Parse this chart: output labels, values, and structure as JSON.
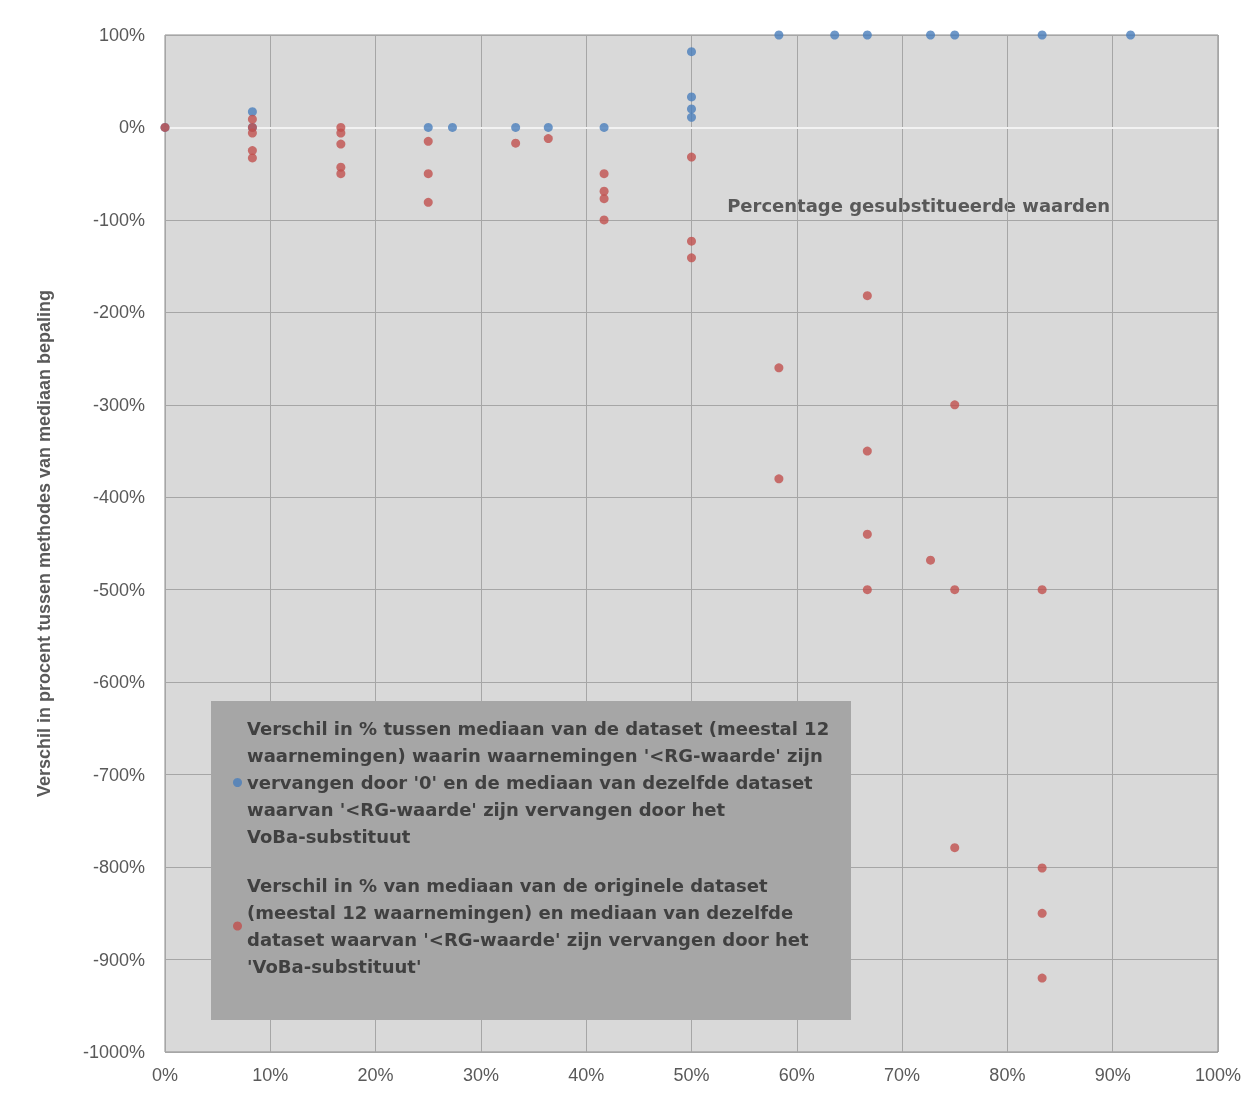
{
  "chart_data": {
    "type": "scatter",
    "xlabel": "Percentage gesubstitueerde waarden",
    "ylabel": "Verschil in procent tussen methodes van mediaan bepaling",
    "xlim": [
      0,
      100
    ],
    "xticks": [
      {
        "value": 0,
        "label": "0%"
      },
      {
        "value": 10,
        "label": "10%"
      },
      {
        "value": 20,
        "label": "20%"
      },
      {
        "value": 30,
        "label": "30%"
      },
      {
        "value": 40,
        "label": "40%"
      },
      {
        "value": 50,
        "label": "50%"
      },
      {
        "value": 60,
        "label": "60%"
      },
      {
        "value": 70,
        "label": "70%"
      },
      {
        "value": 80,
        "label": "80%"
      },
      {
        "value": 90,
        "label": "90%"
      },
      {
        "value": 100,
        "label": "100%"
      }
    ],
    "ylim": [
      -1000,
      100
    ],
    "yticks": [
      {
        "value": 100,
        "label": "100%"
      },
      {
        "value": 0,
        "label": "0%"
      },
      {
        "value": -100,
        "label": "-100%"
      },
      {
        "value": -200,
        "label": "-200%"
      },
      {
        "value": -300,
        "label": "-300%"
      },
      {
        "value": -400,
        "label": "-400%"
      },
      {
        "value": -500,
        "label": "-500%"
      },
      {
        "value": -600,
        "label": "-600%"
      },
      {
        "value": -700,
        "label": "-700%"
      },
      {
        "value": -800,
        "label": "-800%"
      },
      {
        "value": -900,
        "label": "-900%"
      },
      {
        "value": -1000,
        "label": "-1000%"
      }
    ],
    "grid": true,
    "legend": "bottom left",
    "marker": "circle",
    "series": [
      {
        "name": "Verschil in % tussen mediaan van de dataset (meestal 12 waarnemingen) waarin waarnemingen '<RG-waarde' zijn vervangen door '0' en de mediaan van dezelfde dataset waarvan '<RG-waarde' zijn vervangen door het VoBa-substituut",
        "color": "#4a7ebb",
        "x": [
          0,
          8.3,
          8.3,
          25,
          27.3,
          33.3,
          36.4,
          41.7,
          50,
          50,
          50,
          50,
          58.3,
          63.6,
          66.7,
          72.7,
          75,
          83.3,
          91.7
        ],
        "values": [
          0,
          17,
          0,
          0,
          0,
          0,
          0,
          0,
          82,
          33,
          20,
          11,
          100,
          100,
          100,
          100,
          100,
          100,
          100
        ]
      },
      {
        "name": "Verschil in % van mediaan van de originele dataset (meestal 12 waarnemingen) en mediaan van dezelfde dataset waarvan '<RG-waarde' zijn vervangen door het 'VoBa-substituut'",
        "color": "#c0504d",
        "x": [
          0,
          8.3,
          8.3,
          8.3,
          8.3,
          8.3,
          16.7,
          16.7,
          16.7,
          16.7,
          16.7,
          25,
          25,
          25,
          33.3,
          36.4,
          41.7,
          41.7,
          41.7,
          41.7,
          50,
          50,
          50,
          58.3,
          58.3,
          66.7,
          66.7,
          66.7,
          66.7,
          72.7,
          75,
          75,
          75,
          83.3,
          83.3,
          83.3,
          83.3
        ],
        "values": [
          0,
          9,
          0,
          -6,
          -25,
          -33,
          0,
          -6,
          -18,
          -43,
          -50,
          -15,
          -50,
          -81,
          -17,
          -12,
          -50,
          -69,
          -77,
          -100,
          -32,
          -123,
          -141,
          -260,
          -380,
          -182,
          -350,
          -440,
          -500,
          -468,
          -300,
          -500,
          -779,
          -500,
          -801,
          -850,
          -920
        ]
      }
    ]
  }
}
